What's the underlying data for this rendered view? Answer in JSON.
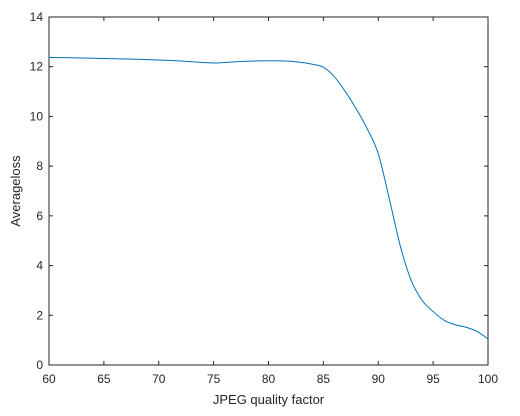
{
  "chart_data": {
    "type": "line",
    "title": "",
    "xlabel": "JPEG quality factor",
    "ylabel": "Averageloss",
    "xlim": [
      60,
      100
    ],
    "ylim": [
      0,
      14
    ],
    "xticks": [
      60,
      65,
      70,
      75,
      80,
      85,
      90,
      95,
      100
    ],
    "yticks": [
      0,
      2,
      4,
      6,
      8,
      10,
      12,
      14
    ],
    "grid": false,
    "legend": "none",
    "series": [
      {
        "color": "#0072bd",
        "x": [
          60,
          62,
          64,
          66,
          68,
          70,
          72,
          74,
          75,
          76,
          78,
          80,
          82,
          83,
          84,
          85,
          86,
          87,
          88,
          89,
          90,
          91,
          92,
          93,
          94,
          95,
          96,
          97,
          98,
          99,
          100
        ],
        "y": [
          12.37,
          12.36,
          12.34,
          12.32,
          12.3,
          12.27,
          12.23,
          12.17,
          12.15,
          12.17,
          12.22,
          12.24,
          12.22,
          12.17,
          12.1,
          11.98,
          11.6,
          11.0,
          10.3,
          9.5,
          8.5,
          6.7,
          4.8,
          3.4,
          2.6,
          2.15,
          1.8,
          1.62,
          1.52,
          1.35,
          1.05
        ]
      }
    ]
  }
}
